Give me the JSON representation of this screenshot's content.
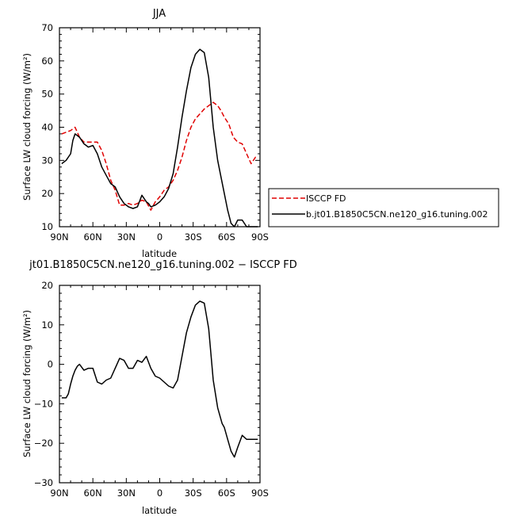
{
  "chart_data": [
    {
      "type": "line",
      "title": "JJA",
      "xlabel": "latitude",
      "ylabel": "Surface LW cloud forcing (W/m²)",
      "xlim": [
        90,
        -90
      ],
      "ylim": [
        10,
        70
      ],
      "x_tick_values": [
        90,
        60,
        30,
        0,
        -30,
        -60,
        -90
      ],
      "x_tick_labels": [
        "90N",
        "60N",
        "30N",
        "0",
        "30S",
        "60S",
        "90S"
      ],
      "y_tick_values": [
        10,
        20,
        30,
        40,
        50,
        60,
        70
      ],
      "y_tick_labels": [
        "10",
        "20",
        "30",
        "40",
        "50",
        "60",
        "70"
      ],
      "legend_position": "right",
      "series": [
        {
          "name": "ISCCP FD",
          "color": "#e00000",
          "style": "dashed",
          "x": [
            88,
            84,
            80,
            76,
            72,
            68,
            64,
            60,
            56,
            52,
            48,
            44,
            40,
            36,
            32,
            28,
            24,
            20,
            16,
            12,
            8,
            4,
            0,
            -4,
            -8,
            -12,
            -16,
            -20,
            -24,
            -28,
            -32,
            -36,
            -40,
            -44,
            -48,
            -52,
            -55,
            -58,
            -62,
            -66,
            -70,
            -74,
            -78,
            -82,
            -86,
            -88
          ],
          "y": [
            38,
            38.5,
            39,
            40,
            37,
            35.5,
            35.5,
            35.5,
            35.5,
            33,
            29,
            24,
            21,
            16.5,
            16.5,
            17,
            16.5,
            17,
            18,
            17.5,
            15,
            17.5,
            19,
            21,
            22,
            24,
            27,
            31,
            36,
            40,
            42.5,
            44,
            45.5,
            46.5,
            47.5,
            46.5,
            45,
            43,
            41,
            37,
            35.5,
            35,
            32,
            29,
            31,
            31
          ]
        },
        {
          "name": "b.jt01.B1850C5CN.ne120_g16.tuning.002",
          "color": "#000000",
          "style": "solid",
          "x": [
            88,
            84,
            80,
            78,
            76,
            72,
            68,
            64,
            60,
            56,
            52,
            48,
            44,
            40,
            36,
            32,
            28,
            24,
            20,
            16,
            12,
            10,
            8,
            4,
            0,
            -4,
            -8,
            -12,
            -16,
            -20,
            -24,
            -28,
            -32,
            -36,
            -40,
            -44,
            -48,
            -52,
            -55,
            -58,
            -61,
            -64,
            -67,
            -70,
            -74,
            -78,
            -82,
            -86,
            -88
          ],
          "y": [
            29,
            30,
            32,
            36,
            38,
            37,
            35,
            34,
            34.5,
            32,
            28,
            25.5,
            23,
            22,
            19,
            17,
            16,
            15.5,
            16,
            19.5,
            17.5,
            17,
            16,
            16.5,
            17.5,
            19,
            21.5,
            26,
            34,
            43,
            51,
            58,
            62,
            63.5,
            62.5,
            55,
            40,
            30,
            25,
            20,
            15,
            11,
            10,
            12,
            12,
            10,
            10,
            10,
            10
          ]
        }
      ]
    },
    {
      "type": "line",
      "title": "jt01.B1850C5CN.ne120_g16.tuning.002 − ISCCP FD",
      "xlabel": "latitude",
      "ylabel": "Surface LW cloud forcing (W/m²)",
      "xlim": [
        90,
        -90
      ],
      "ylim": [
        -30,
        20
      ],
      "x_tick_values": [
        90,
        60,
        30,
        0,
        -30,
        -60,
        -90
      ],
      "x_tick_labels": [
        "90N",
        "60N",
        "30N",
        "0",
        "30S",
        "60S",
        "90S"
      ],
      "y_tick_values": [
        -30,
        -20,
        -10,
        0,
        10,
        20
      ],
      "y_tick_labels": [
        "−30",
        "−20",
        "−10",
        "0",
        "10",
        "20"
      ],
      "series": [
        {
          "color": "#000000",
          "style": "solid",
          "x": [
            88,
            84,
            82,
            80,
            78,
            76,
            74,
            72,
            68,
            64,
            60,
            56,
            52,
            48,
            44,
            40,
            36,
            32,
            28,
            24,
            20,
            16,
            12,
            8,
            4,
            0,
            -4,
            -8,
            -12,
            -16,
            -20,
            -24,
            -28,
            -32,
            -36,
            -40,
            -44,
            -48,
            -52,
            -56,
            -58,
            -61,
            -64,
            -67,
            -70,
            -74,
            -78,
            -82,
            -86,
            -88
          ],
          "y": [
            -8.5,
            -8.5,
            -7.5,
            -5,
            -3,
            -1.5,
            -0.5,
            0,
            -1.5,
            -1,
            -1,
            -4.5,
            -5,
            -4,
            -3.5,
            -1,
            1.5,
            1,
            -1,
            -1,
            1,
            0.5,
            2,
            -1,
            -3,
            -3.5,
            -4.5,
            -5.5,
            -6,
            -4,
            2,
            8,
            12,
            15,
            16,
            15.5,
            9,
            -4,
            -11,
            -15,
            -16,
            -19,
            -22,
            -23.5,
            -21,
            -18,
            -19,
            -19,
            -19,
            -19
          ]
        }
      ]
    }
  ]
}
